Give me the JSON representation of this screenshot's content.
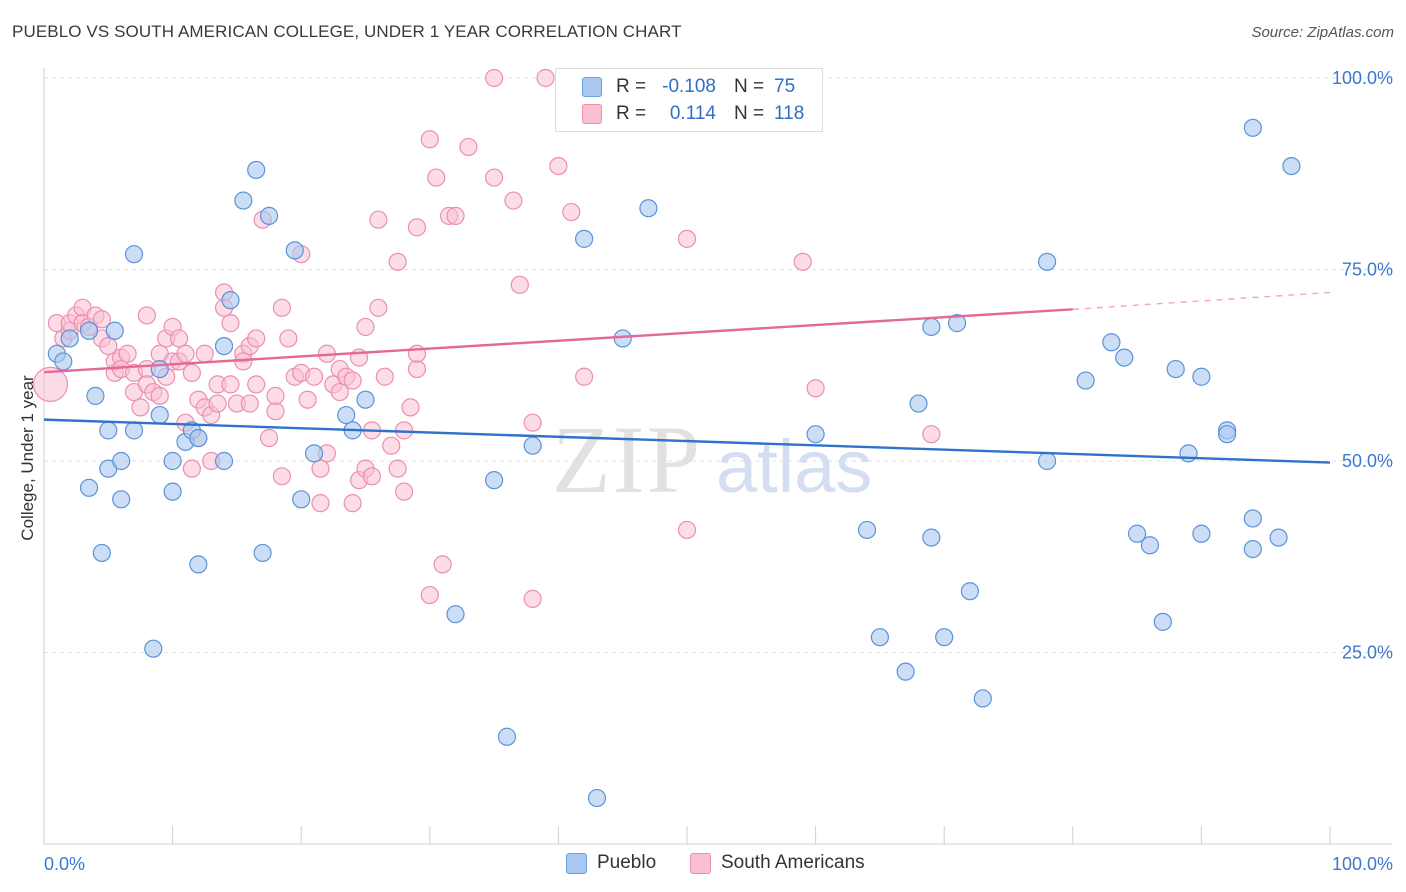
{
  "title": "PUEBLO VS SOUTH AMERICAN COLLEGE, UNDER 1 YEAR CORRELATION CHART",
  "source": "Source: ZipAtlas.com",
  "legend": {
    "rows": [
      {
        "r_label": "R =",
        "r_value": "-0.108",
        "n_label": "N =",
        "n_value": "75",
        "color": "#a9c8f0",
        "border": "#6a9ee0"
      },
      {
        "r_label": "R =",
        "r_value": "0.114",
        "n_label": "N =",
        "n_value": "118",
        "color": "#f9c0d2",
        "border": "#ec8fae"
      }
    ]
  },
  "chart_data": {
    "type": "scatter",
    "title": "PUEBLO VS SOUTH AMERICAN COLLEGE, UNDER 1 YEAR CORRELATION CHART",
    "xlabel": "",
    "ylabel": "College, Under 1 year",
    "xlim": [
      0,
      100
    ],
    "ylim": [
      0,
      104
    ],
    "x_tick_labels": [
      "0.0%",
      "100.0%"
    ],
    "y_tick_labels": [
      "100.0%",
      "75.0%",
      "50.0%",
      "25.0%"
    ],
    "y_ticks": [
      100,
      75,
      50,
      25
    ],
    "watermark": "ZIPatlas",
    "series": [
      {
        "name": "Pueblo",
        "color": "#a9c8f0",
        "stroke": "#5b93d9",
        "trend": {
          "x": [
            0,
            100
          ],
          "y": [
            55.4,
            49.8
          ],
          "color": "#2f72cc"
        },
        "points": [
          [
            1,
            64
          ],
          [
            1.5,
            63
          ],
          [
            2,
            66
          ],
          [
            3.5,
            46.5
          ],
          [
            3.5,
            67
          ],
          [
            4,
            58.5
          ],
          [
            4.5,
            38
          ],
          [
            5,
            49
          ],
          [
            5.5,
            67
          ],
          [
            5,
            54
          ],
          [
            6,
            50
          ],
          [
            6,
            45
          ],
          [
            7,
            77
          ],
          [
            7,
            54
          ],
          [
            8.5,
            25.5
          ],
          [
            9,
            56
          ],
          [
            9,
            62
          ],
          [
            10,
            50
          ],
          [
            10,
            46
          ],
          [
            11,
            52.5
          ],
          [
            11.5,
            54
          ],
          [
            12,
            53
          ],
          [
            12,
            36.5
          ],
          [
            14,
            50
          ],
          [
            14,
            65
          ],
          [
            14.5,
            71
          ],
          [
            15.5,
            84
          ],
          [
            16.5,
            88
          ],
          [
            17,
            38
          ],
          [
            17.5,
            82
          ],
          [
            19.5,
            77.5
          ],
          [
            20,
            45
          ],
          [
            21,
            51
          ],
          [
            23.5,
            56
          ],
          [
            24,
            54
          ],
          [
            25,
            58
          ],
          [
            32,
            30
          ],
          [
            35,
            47.5
          ],
          [
            36,
            14
          ],
          [
            38,
            52
          ],
          [
            42,
            79
          ],
          [
            43,
            6
          ],
          [
            45,
            66
          ],
          [
            47,
            83
          ],
          [
            60,
            53.5
          ],
          [
            64,
            41
          ],
          [
            65,
            27
          ],
          [
            67,
            22.5
          ],
          [
            68,
            57.5
          ],
          [
            69,
            67.5
          ],
          [
            69,
            40
          ],
          [
            70,
            27
          ],
          [
            71,
            68
          ],
          [
            72,
            33
          ],
          [
            73,
            19
          ],
          [
            78,
            50
          ],
          [
            78,
            76
          ],
          [
            81,
            60.5
          ],
          [
            83,
            65.5
          ],
          [
            84,
            63.5
          ],
          [
            85,
            40.5
          ],
          [
            86,
            39
          ],
          [
            87,
            29
          ],
          [
            88,
            62
          ],
          [
            89,
            51
          ],
          [
            90,
            40.5
          ],
          [
            90,
            61
          ],
          [
            92,
            54
          ],
          [
            92,
            53.5
          ],
          [
            94,
            38.5
          ],
          [
            94,
            42.5
          ],
          [
            96,
            40
          ],
          [
            94,
            93.5
          ],
          [
            97,
            88.5
          ]
        ]
      },
      {
        "name": "South Americans",
        "color": "#f9c0d2",
        "stroke": "#ec8fae",
        "trend": {
          "x": [
            0,
            80
          ],
          "y": [
            61.6,
            69.8
          ],
          "dashed_to": [
            100,
            72
          ],
          "color": "#e46a96"
        },
        "points": [
          [
            0.5,
            60
          ],
          [
            1,
            68
          ],
          [
            1.5,
            66
          ],
          [
            2,
            67
          ],
          [
            2,
            68
          ],
          [
            2.5,
            69
          ],
          [
            3,
            70
          ],
          [
            3,
            68
          ],
          [
            3.5,
            67.5
          ],
          [
            4,
            69
          ],
          [
            4.5,
            68.5
          ],
          [
            4.5,
            66
          ],
          [
            5,
            65
          ],
          [
            5.5,
            61.5
          ],
          [
            5.5,
            63
          ],
          [
            6,
            63.5
          ],
          [
            6,
            62
          ],
          [
            6.5,
            64
          ],
          [
            7,
            59
          ],
          [
            7,
            61.5
          ],
          [
            7.5,
            57
          ],
          [
            8,
            62
          ],
          [
            8,
            60
          ],
          [
            8.5,
            59
          ],
          [
            8,
            69
          ],
          [
            9,
            64
          ],
          [
            9,
            58.5
          ],
          [
            9.5,
            61
          ],
          [
            9.5,
            66
          ],
          [
            10,
            67.5
          ],
          [
            10,
            63
          ],
          [
            10.5,
            66
          ],
          [
            10.5,
            63
          ],
          [
            11,
            55
          ],
          [
            11,
            64
          ],
          [
            11.5,
            49
          ],
          [
            11.5,
            61.5
          ],
          [
            12,
            58
          ],
          [
            12,
            53
          ],
          [
            12.5,
            57
          ],
          [
            12.5,
            64
          ],
          [
            13,
            56
          ],
          [
            13,
            50
          ],
          [
            13.5,
            60
          ],
          [
            13.5,
            57.5
          ],
          [
            14,
            70
          ],
          [
            14,
            72
          ],
          [
            14.5,
            60
          ],
          [
            14.5,
            68
          ],
          [
            15,
            57.5
          ],
          [
            15.5,
            64
          ],
          [
            15.5,
            63
          ],
          [
            16,
            57.5
          ],
          [
            16,
            65
          ],
          [
            16.5,
            60
          ],
          [
            16.5,
            66
          ],
          [
            17,
            81.5
          ],
          [
            17.5,
            53
          ],
          [
            18,
            56.5
          ],
          [
            18,
            58.5
          ],
          [
            18.5,
            48
          ],
          [
            18.5,
            70
          ],
          [
            19,
            66
          ],
          [
            19.5,
            61
          ],
          [
            20,
            61.5
          ],
          [
            20,
            77
          ],
          [
            20.5,
            58
          ],
          [
            21,
            61
          ],
          [
            21.5,
            49
          ],
          [
            21.5,
            44.5
          ],
          [
            22,
            51
          ],
          [
            22,
            64
          ],
          [
            22.5,
            60
          ],
          [
            23,
            62
          ],
          [
            23,
            59
          ],
          [
            23.5,
            61
          ],
          [
            24,
            60.5
          ],
          [
            24,
            44.5
          ],
          [
            24.5,
            47.5
          ],
          [
            24.5,
            63.5
          ],
          [
            25,
            67.5
          ],
          [
            25,
            49
          ],
          [
            25.5,
            48
          ],
          [
            25.5,
            54
          ],
          [
            26,
            70
          ],
          [
            26,
            81.5
          ],
          [
            26.5,
            61
          ],
          [
            27,
            52
          ],
          [
            27.5,
            49
          ],
          [
            27.5,
            76
          ],
          [
            28,
            46
          ],
          [
            28,
            54
          ],
          [
            28.5,
            57
          ],
          [
            29,
            80.5
          ],
          [
            29,
            62
          ],
          [
            29,
            64
          ],
          [
            30,
            92
          ],
          [
            30,
            32.5
          ],
          [
            30.5,
            87
          ],
          [
            31,
            36.5
          ],
          [
            31.5,
            82
          ],
          [
            32,
            82
          ],
          [
            33,
            91
          ],
          [
            35,
            87
          ],
          [
            35,
            100
          ],
          [
            36.5,
            84
          ],
          [
            37,
            73
          ],
          [
            38,
            55
          ],
          [
            38,
            32
          ],
          [
            39,
            100
          ],
          [
            40,
            88.5
          ],
          [
            41,
            82.5
          ],
          [
            42,
            61
          ],
          [
            50,
            79
          ],
          [
            50,
            41
          ],
          [
            59,
            76
          ],
          [
            60,
            59.5
          ],
          [
            69,
            53.5
          ]
        ]
      }
    ]
  }
}
